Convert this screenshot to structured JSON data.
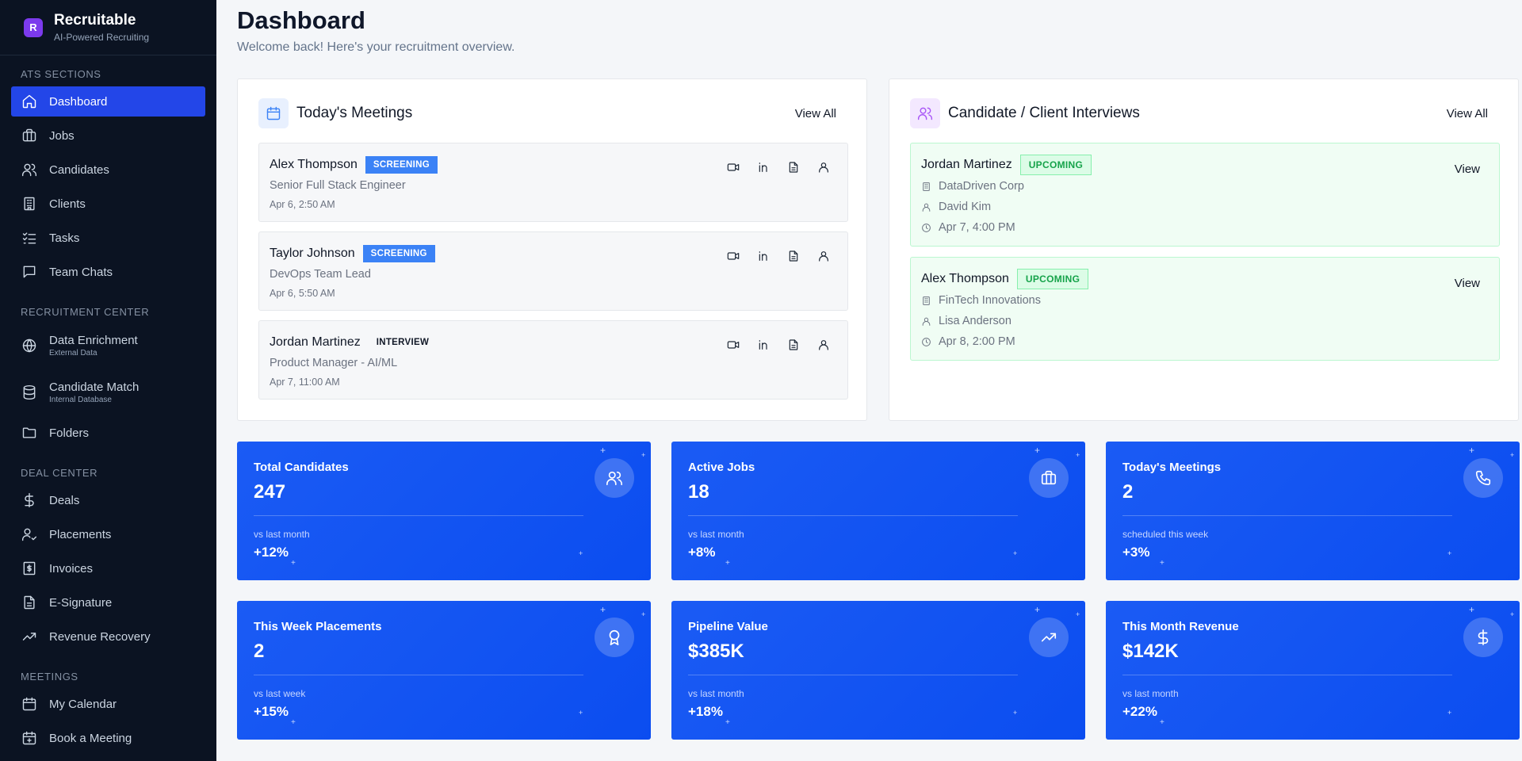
{
  "brand": {
    "name": "Recruitable",
    "tagline": "AI-Powered Recruiting",
    "logo_letter": "R"
  },
  "sidebar": {
    "sections": [
      {
        "title": "ATS SECTIONS",
        "items": [
          {
            "label": "Dashboard",
            "icon": "home-icon",
            "active": true
          },
          {
            "label": "Jobs",
            "icon": "briefcase-icon"
          },
          {
            "label": "Candidates",
            "icon": "users-icon"
          },
          {
            "label": "Clients",
            "icon": "building-icon"
          },
          {
            "label": "Tasks",
            "icon": "checklist-icon"
          },
          {
            "label": "Team Chats",
            "icon": "chat-icon"
          }
        ]
      },
      {
        "title": "RECRUITMENT CENTER",
        "items": [
          {
            "label": "Data Enrichment",
            "sub": "External Data",
            "icon": "globe-icon"
          },
          {
            "label": "Candidate Match",
            "sub": "Internal Database",
            "icon": "database-icon"
          },
          {
            "label": "Folders",
            "icon": "folder-icon"
          }
        ]
      },
      {
        "title": "DEAL CENTER",
        "items": [
          {
            "label": "Deals",
            "icon": "dollar-icon"
          },
          {
            "label": "Placements",
            "icon": "user-check-icon"
          },
          {
            "label": "Invoices",
            "icon": "invoice-icon"
          },
          {
            "label": "E-Signature",
            "icon": "document-icon"
          },
          {
            "label": "Revenue Recovery",
            "icon": "trending-up-icon"
          }
        ]
      },
      {
        "title": "MEETINGS",
        "items": [
          {
            "label": "My Calendar",
            "icon": "calendar-icon"
          },
          {
            "label": "Book a Meeting",
            "icon": "calendar-plus-icon"
          }
        ]
      }
    ]
  },
  "header": {
    "title": "Dashboard",
    "subtitle": "Welcome back! Here's your recruitment overview."
  },
  "meetings": {
    "title": "Today's Meetings",
    "view_all": "View All",
    "items": [
      {
        "name": "Alex Thompson",
        "badge": "SCREENING",
        "role": "Senior Full Stack Engineer",
        "time": "Apr 6, 2:50 AM"
      },
      {
        "name": "Taylor Johnson",
        "badge": "SCREENING",
        "role": "DevOps Team Lead",
        "time": "Apr 6, 5:50 AM"
      },
      {
        "name": "Jordan Martinez",
        "badge": "INTERVIEW",
        "role": "Product Manager - AI/ML",
        "time": "Apr 7, 11:00 AM"
      }
    ]
  },
  "interviews": {
    "title": "Candidate / Client Interviews",
    "view_all": "View All",
    "items": [
      {
        "name": "Jordan Martinez",
        "badge": "UPCOMING",
        "company": "DataDriven Corp",
        "contact": "David Kim",
        "time": "Apr 7, 4:00 PM",
        "action": "View"
      },
      {
        "name": "Alex Thompson",
        "badge": "UPCOMING",
        "company": "FinTech Innovations",
        "contact": "Lisa Anderson",
        "time": "Apr 8, 2:00 PM",
        "action": "View"
      }
    ]
  },
  "stats": [
    {
      "label": "Total Candidates",
      "value": "247",
      "sub": "vs last month",
      "change": "+12%",
      "icon": "users-icon"
    },
    {
      "label": "Active Jobs",
      "value": "18",
      "sub": "vs last month",
      "change": "+8%",
      "icon": "briefcase-icon"
    },
    {
      "label": "Today's Meetings",
      "value": "2",
      "sub": "scheduled this week",
      "change": "+3%",
      "icon": "phone-icon"
    },
    {
      "label": "This Week Placements",
      "value": "2",
      "sub": "vs last week",
      "change": "+15%",
      "icon": "award-icon"
    },
    {
      "label": "Pipeline Value",
      "value": "$385K",
      "sub": "vs last month",
      "change": "+18%",
      "icon": "trending-up-icon"
    },
    {
      "label": "This Month Revenue",
      "value": "$142K",
      "sub": "vs last month",
      "change": "+22%",
      "icon": "dollar-icon"
    }
  ],
  "colors": {
    "sidebar_bg": "#0b1322",
    "active_nav": "#2346e8",
    "card_blue": "#0b4df0",
    "screening": "#3b82f6",
    "upcoming": "#16a34a"
  }
}
